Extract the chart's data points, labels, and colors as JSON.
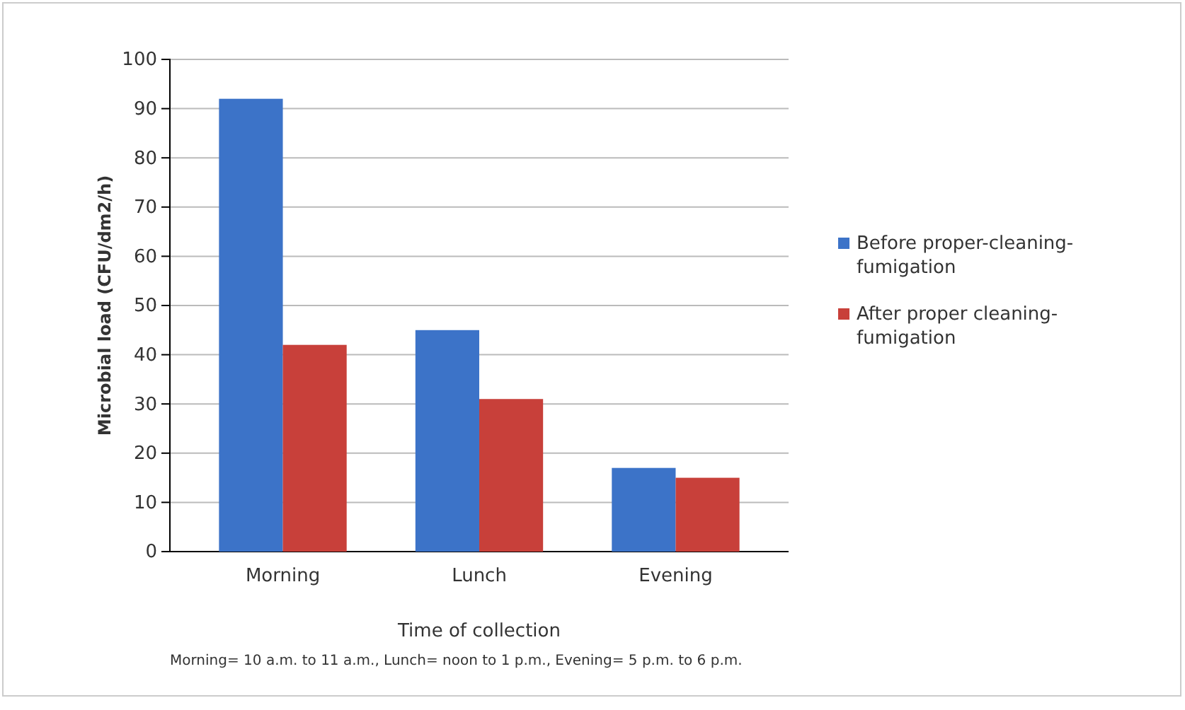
{
  "chart_data": {
    "type": "bar",
    "xlabel": "Time of collection",
    "ylabel": "Microbial load (CFU/dm2/h)",
    "categories": [
      "Morning",
      "Lunch",
      "Evening"
    ],
    "series": [
      {
        "name": "Before proper-cleaning-fumigation",
        "color": "#3c73c8",
        "values": [
          92,
          45,
          17
        ]
      },
      {
        "name": "After proper cleaning-fumigation",
        "color": "#c8403a",
        "values": [
          42,
          31,
          15
        ]
      }
    ],
    "ylim": [
      0,
      100
    ],
    "yticks": [
      0,
      10,
      20,
      30,
      40,
      50,
      60,
      70,
      80,
      90,
      100
    ],
    "grid": "y",
    "legend": "right",
    "annotations": [
      "Morning= 10 a.m.  to 11 a.m., Lunch= noon to 1 p.m., Evening= 5 p.m. to 6 p.m."
    ]
  }
}
